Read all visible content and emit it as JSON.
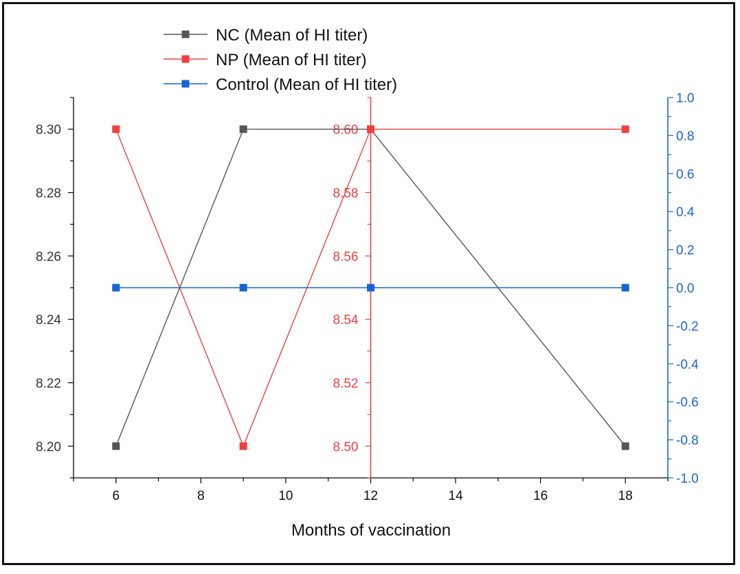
{
  "chart_data": {
    "type": "line",
    "xlabel": "Months of vaccination",
    "xlim": [
      5,
      19
    ],
    "xticks": [
      6,
      8,
      10,
      12,
      14,
      16,
      18
    ],
    "x": [
      6,
      9,
      12,
      18
    ],
    "axes": {
      "left": {
        "ylim": [
          8.19,
          8.31
        ],
        "ticks": [
          "8.20",
          "8.22",
          "8.24",
          "8.26",
          "8.28",
          "8.30"
        ],
        "color": "#000000"
      },
      "middle": {
        "ylim": [
          8.49,
          8.61
        ],
        "ticks": [
          "8.50",
          "8.52",
          "8.54",
          "8.56",
          "8.58",
          "8.60"
        ],
        "color": "#ef4040",
        "position_x": 12
      },
      "right": {
        "ylim": [
          -1.0,
          1.0
        ],
        "ticks": [
          "-1.0",
          "-0.8",
          "-0.6",
          "-0.4",
          "-0.2",
          "0.0",
          "0.2",
          "0.4",
          "0.6",
          "0.8",
          "1.0"
        ],
        "color": "#1565d8"
      }
    },
    "series": [
      {
        "name": "NC (Mean of HI titer)",
        "axis": "left",
        "color": "#555555",
        "values": [
          8.2,
          8.3,
          8.3,
          8.2
        ]
      },
      {
        "name": "NP (Mean of HI titer)",
        "axis": "middle",
        "color": "#ef4040",
        "values": [
          8.6,
          8.5,
          8.6,
          8.6
        ]
      },
      {
        "name": "Control (Mean of HI titer)",
        "axis": "right",
        "color": "#1565d8",
        "values": [
          0.0,
          0.0,
          0.0,
          0.0
        ]
      }
    ],
    "legend": "top-left",
    "grid": false
  }
}
